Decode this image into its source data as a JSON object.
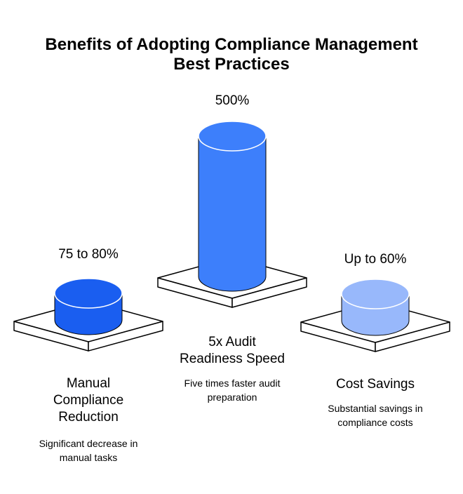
{
  "chart_data": {
    "type": "bar",
    "title_line1": "Benefits of Adopting Compliance Management",
    "title_line2": "Best Practices",
    "categories": [
      {
        "name_lines": [
          "Manual",
          "Compliance",
          "Reduction"
        ],
        "value_label": "75 to 80%",
        "value": 78,
        "description_lines": [
          "Significant decrease in",
          "manual tasks"
        ],
        "color": "#1a5ef0"
      },
      {
        "name_lines": [
          "5x Audit",
          "Readiness Speed"
        ],
        "value_label": "500%",
        "value": 500,
        "description_lines": [
          "Five times faster audit",
          "preparation"
        ],
        "color": "#3d7ffb"
      },
      {
        "name_lines": [
          "Cost Savings"
        ],
        "value_label": "Up to 60%",
        "value": 60,
        "description_lines": [
          "Substantial savings in",
          "compliance costs"
        ],
        "color": "#98b8fb"
      }
    ]
  }
}
